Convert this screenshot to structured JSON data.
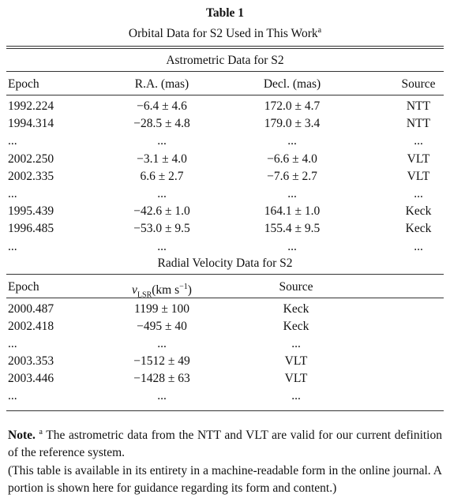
{
  "header": {
    "title": "Table 1",
    "subtitle": "Orbital Data for S2 Used in This Work",
    "subtitle_marker": "a"
  },
  "sections": [
    {
      "title": "Astrometric Data for S2",
      "columns": [
        "Epoch",
        "R.A. (mas)",
        "Decl. (mas)",
        "Source"
      ],
      "rows": [
        [
          "1992.224",
          "−6.4 ± 4.6",
          "172.0 ± 4.7",
          "NTT"
        ],
        [
          "1994.314",
          "−28.5 ± 4.8",
          "179.0 ± 3.4",
          "NTT"
        ],
        [
          "...",
          "...",
          "...",
          "..."
        ],
        [
          "2002.250",
          "−3.1 ± 4.0",
          "−6.6 ± 4.0",
          "VLT"
        ],
        [
          "2002.335",
          "6.6 ± 2.7",
          "−7.6 ± 2.7",
          "VLT"
        ],
        [
          "...",
          "...",
          "...",
          "..."
        ],
        [
          "1995.439",
          "−42.6 ± 1.0",
          "164.1 ± 1.0",
          "Keck"
        ],
        [
          "1996.485",
          "−53.0 ± 9.5",
          "155.4 ± 9.5",
          "Keck"
        ],
        [
          "...",
          "...",
          "...",
          "..."
        ]
      ]
    },
    {
      "title": "Radial Velocity Data for S2",
      "columns": [
        "Epoch",
        {
          "symbol": "v",
          "subscript": "LSR",
          "unit": "(km s",
          "superscript": "−1",
          "close": ")"
        },
        "Source"
      ],
      "rows": [
        [
          "2000.487",
          "1199 ± 100",
          "Keck"
        ],
        [
          "2002.418",
          "−495 ± 40",
          "Keck"
        ],
        [
          "...",
          "...",
          "..."
        ],
        [
          "2003.353",
          "−1512 ± 49",
          "VLT"
        ],
        [
          "2003.446",
          "−1428 ± 63",
          "VLT"
        ],
        [
          "...",
          "...",
          "..."
        ]
      ]
    }
  ],
  "notes": {
    "label": "Note.",
    "marker": "a",
    "text": "The astrometric data from the NTT and VLT are valid for our current definition of the reference system.",
    "availability": "(This table is available in its entirety in a machine-readable form in the online journal. A portion is shown here for guidance regarding its form and content.)"
  }
}
